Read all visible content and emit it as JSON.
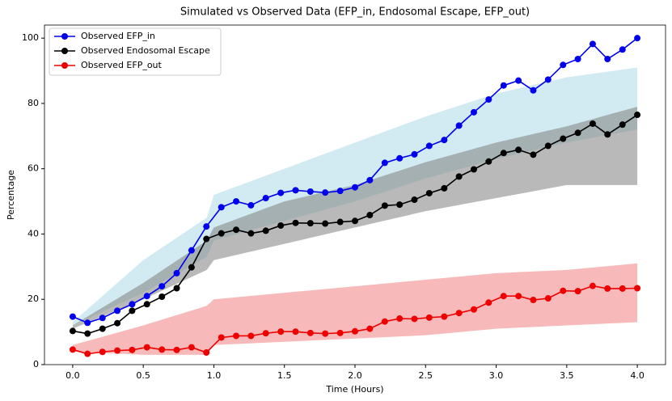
{
  "chart_data": {
    "type": "line",
    "title": "Simulated vs Observed Data (EFP_in, Endosomal Escape, EFP_out)",
    "xlabel": "Time (Hours)",
    "ylabel": "Percentage",
    "x": [
      0,
      0.105,
      0.211,
      0.316,
      0.421,
      0.526,
      0.632,
      0.737,
      0.842,
      0.947,
      1.053,
      1.158,
      1.263,
      1.368,
      1.474,
      1.579,
      1.684,
      1.789,
      1.895,
      2.0,
      2.105,
      2.211,
      2.316,
      2.421,
      2.526,
      2.632,
      2.737,
      2.842,
      2.947,
      3.053,
      3.158,
      3.263,
      3.368,
      3.474,
      3.579,
      3.684,
      3.789,
      3.895,
      4.0
    ],
    "series": [
      {
        "name": "Observed EFP_in",
        "color": "#0000ee",
        "values": [
          14.7,
          12.8,
          14.3,
          16.5,
          18.5,
          21,
          24,
          28,
          35,
          42.3,
          48.2,
          50,
          48.8,
          51,
          52.6,
          53.4,
          53,
          52.7,
          53.2,
          54.3,
          56.5,
          61.8,
          63.2,
          64.4,
          67,
          68.8,
          73.2,
          77.3,
          81.2,
          85.5,
          87,
          84,
          87.3,
          91.8,
          93.6,
          98.2,
          93.6,
          96.5,
          100
        ]
      },
      {
        "name": "Observed Endosomal Escape",
        "color": "#000000",
        "values": [
          10.3,
          9.5,
          11,
          12.7,
          16.5,
          18.5,
          20.8,
          23.4,
          29.8,
          38.5,
          40.2,
          41.3,
          40.2,
          41,
          42.6,
          43.4,
          43.3,
          43.2,
          43.7,
          44,
          45.8,
          48.7,
          49,
          50.5,
          52.5,
          54,
          57.6,
          59.8,
          62.2,
          64.8,
          65.8,
          64.3,
          67,
          69.2,
          71,
          73.8,
          70.5,
          73.5,
          76.5
        ]
      },
      {
        "name": "Observed EFP_out",
        "color": "#ee0000",
        "values": [
          4.6,
          3.3,
          3.9,
          4.3,
          4.5,
          5.3,
          4.6,
          4.5,
          5.3,
          3.7,
          8.3,
          8.8,
          8.8,
          9.6,
          10.1,
          10.1,
          9.7,
          9.5,
          9.7,
          10.2,
          11,
          13.2,
          14.1,
          14,
          14.4,
          14.7,
          15.8,
          16.9,
          19,
          21,
          21,
          19.8,
          20.3,
          22.6,
          22.5,
          24.1,
          23.3,
          23.3,
          23.4
        ]
      }
    ],
    "bands": [
      {
        "color": "#add8e6",
        "x": [
          0,
          0.5,
          0.95,
          1.0,
          1.5,
          2,
          2.5,
          3,
          3.5,
          4
        ],
        "lower": [
          12,
          22,
          33,
          38,
          44,
          50,
          57,
          63,
          68,
          72
        ],
        "upper": [
          13,
          32,
          45,
          52,
          60,
          68,
          76,
          83,
          88,
          91
        ]
      },
      {
        "color": "#808080",
        "x": [
          0,
          0.5,
          0.95,
          1.0,
          1.5,
          2,
          2.5,
          3,
          3.5,
          4
        ],
        "lower": [
          11,
          20,
          29,
          32,
          37,
          42,
          47,
          51,
          55,
          55
        ],
        "upper": [
          12,
          25,
          38,
          42,
          50,
          55,
          62,
          68,
          73,
          79
        ]
      },
      {
        "color": "#f08080",
        "x": [
          0,
          0.5,
          0.95,
          1.0,
          1.5,
          2,
          2.5,
          3,
          3.5,
          4
        ],
        "lower": [
          4,
          3,
          3,
          6,
          7,
          8,
          9,
          11,
          12,
          13
        ],
        "upper": [
          6,
          12,
          18,
          20,
          22,
          24,
          26,
          28,
          29,
          31
        ]
      }
    ],
    "xlim": [
      -0.2,
      4.2
    ],
    "ylim": [
      0,
      104
    ],
    "xticks": [
      {
        "value": 0,
        "label": "0.0"
      },
      {
        "value": 0.5,
        "label": "0.5"
      },
      {
        "value": 1,
        "label": "1.0"
      },
      {
        "value": 1.5,
        "label": "1.5"
      },
      {
        "value": 2,
        "label": "2.0"
      },
      {
        "value": 2.5,
        "label": "2.5"
      },
      {
        "value": 3,
        "label": "3.0"
      },
      {
        "value": 3.5,
        "label": "3.5"
      },
      {
        "value": 4,
        "label": "4.0"
      }
    ],
    "yticks": [
      0,
      20,
      40,
      60,
      80,
      100
    ],
    "legend": "upper left",
    "grid": false
  }
}
